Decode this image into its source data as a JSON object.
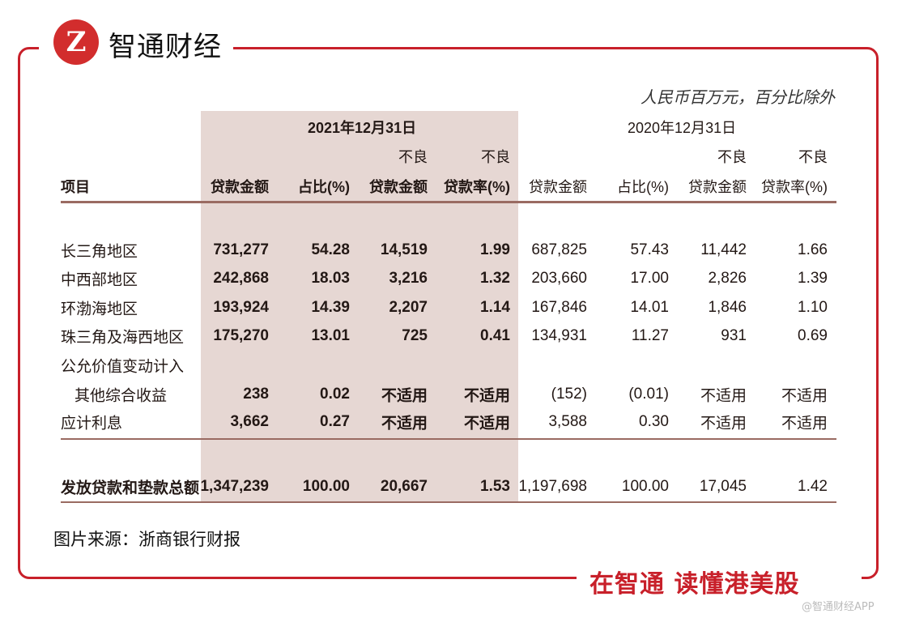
{
  "brand": {
    "logo_text": "Z",
    "name": "智通财经",
    "slogan": "在智通  读懂港美股",
    "watermark": "@智通财经APP"
  },
  "unit_note": "人民币百万元，百分比除外",
  "periods": [
    "2021年12月31日",
    "2020年12月31日"
  ],
  "header_top": [
    "不良",
    "不良"
  ],
  "columns": {
    "item": "项目",
    "loan_amount": "贷款金额",
    "share": "占比(%)",
    "npl_amount": "贷款金额",
    "npl_ratio": "贷款率(%)"
  },
  "rows": [
    {
      "label": "长三角地区",
      "v": [
        "731,277",
        "54.28",
        "14,519",
        "1.99",
        "687,825",
        "57.43",
        "11,442",
        "1.66"
      ]
    },
    {
      "label": "中西部地区",
      "v": [
        "242,868",
        "18.03",
        "3,216",
        "1.32",
        "203,660",
        "17.00",
        "2,826",
        "1.39"
      ]
    },
    {
      "label": "环渤海地区",
      "v": [
        "193,924",
        "14.39",
        "2,207",
        "1.14",
        "167,846",
        "14.01",
        "1,846",
        "1.10"
      ]
    },
    {
      "label": "珠三角及海西地区",
      "v": [
        "175,270",
        "13.01",
        "725",
        "0.41",
        "134,931",
        "11.27",
        "931",
        "0.69"
      ]
    },
    {
      "label": "公允价值变动计入",
      "v": []
    },
    {
      "label": "其他综合收益",
      "indent": true,
      "v": [
        "238",
        "0.02",
        "不适用",
        "不适用",
        "(152)",
        "(0.01)",
        "不适用",
        "不适用"
      ]
    },
    {
      "label": "应计利息",
      "v": [
        "3,662",
        "0.27",
        "不适用",
        "不适用",
        "3,588",
        "0.30",
        "不适用",
        "不适用"
      ]
    }
  ],
  "total": {
    "label": "发放贷款和垫款总额",
    "v": [
      "1,347,239",
      "100.00",
      "20,667",
      "1.53",
      "1,197,698",
      "100.00",
      "17,045",
      "1.42"
    ]
  },
  "source": "图片来源：浙商银行财报"
}
